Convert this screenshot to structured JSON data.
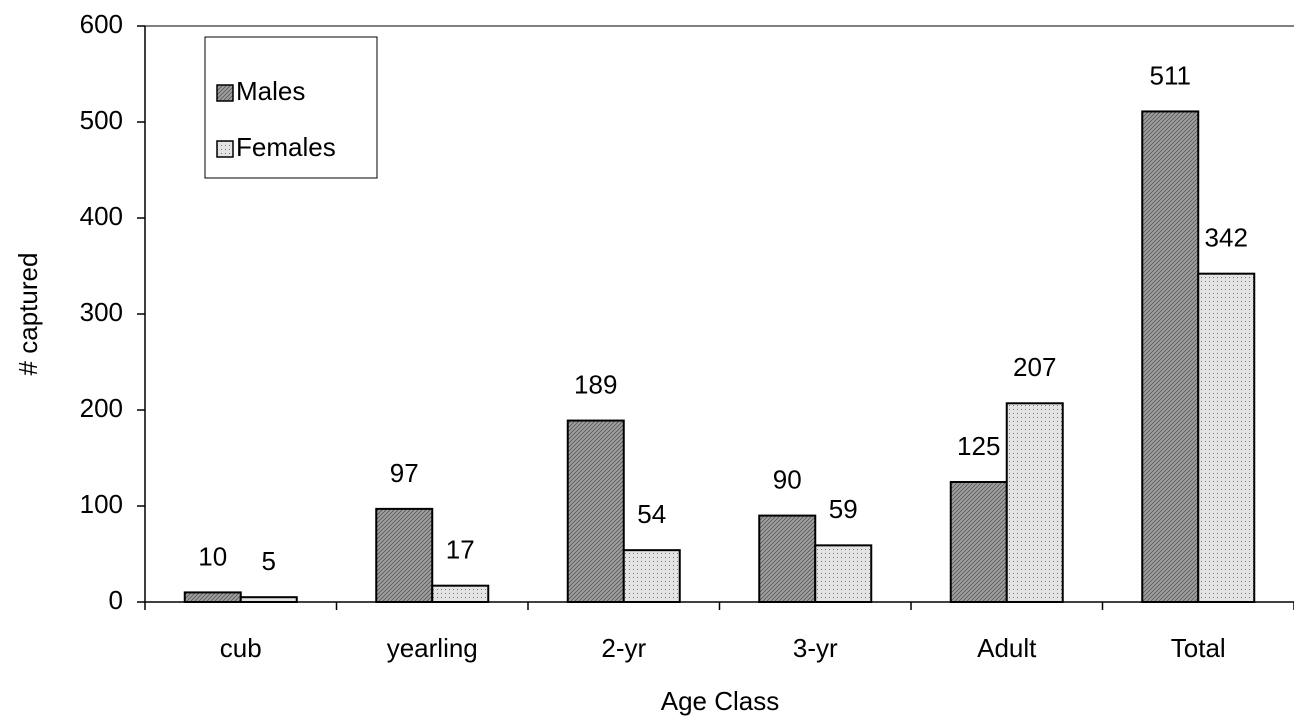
{
  "chart_data": {
    "type": "bar",
    "x_label": "Age Class",
    "y_label": "# captured",
    "categories": [
      "cub",
      "yearling",
      "2-yr",
      "3-yr",
      "Adult",
      "Total"
    ],
    "series": [
      {
        "name": "Males",
        "color": "#a0a0a0",
        "values": [
          10,
          97,
          189,
          90,
          125,
          511
        ]
      },
      {
        "name": "Females",
        "color": "#e4e4e4",
        "values": [
          5,
          17,
          54,
          59,
          207,
          342
        ]
      }
    ],
    "ylim": [
      0,
      600
    ],
    "yticks": [
      0,
      100,
      200,
      300,
      400,
      500,
      600
    ],
    "legend": "upper-left"
  }
}
